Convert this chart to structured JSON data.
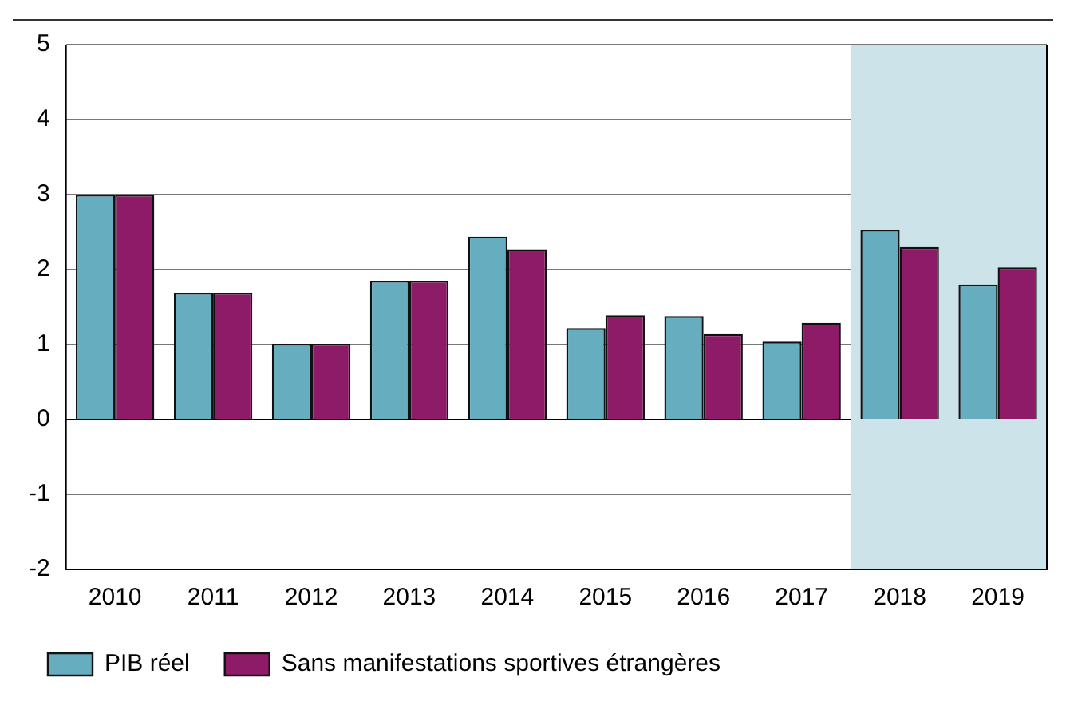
{
  "chart_data": {
    "type": "bar",
    "categories": [
      "2010",
      "2011",
      "2012",
      "2013",
      "2014",
      "2015",
      "2016",
      "2017",
      "2018",
      "2019"
    ],
    "series": [
      {
        "name": "PIB réel",
        "color": "#67adc0",
        "values": [
          3.0,
          1.69,
          1.01,
          1.85,
          2.44,
          1.22,
          1.38,
          1.04,
          2.53,
          1.8
        ]
      },
      {
        "name": "Sans manifestations sportives étrangères",
        "color": "#8e1b68",
        "values": [
          3.0,
          1.69,
          1.01,
          1.85,
          2.27,
          1.39,
          1.14,
          1.29,
          2.3,
          2.03
        ]
      }
    ],
    "ylim": [
      -2,
      5
    ],
    "yticks": [
      -2,
      -1,
      0,
      1,
      2,
      3,
      4,
      5
    ],
    "grid": "y",
    "legend": "bottom",
    "bands": [
      {
        "axis": "x",
        "from": "2018",
        "to": "2019",
        "color": "#cde3ea"
      }
    ]
  }
}
